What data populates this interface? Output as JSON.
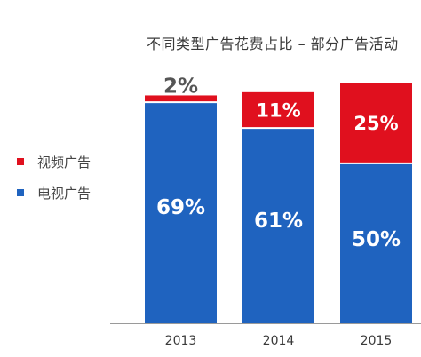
{
  "chart_data": {
    "type": "bar",
    "stacked": true,
    "title": "不同类型广告花费占比 – 部分广告活动",
    "categories": [
      "2013",
      "2014",
      "2015"
    ],
    "series": [
      {
        "name": "电视广告",
        "values": [
          69,
          61,
          50
        ],
        "labels": [
          "69%",
          "61%",
          "50%"
        ],
        "color": "#1f63bf"
      },
      {
        "name": "视频广告",
        "values": [
          2,
          11,
          25
        ],
        "labels": [
          "2%",
          "11%",
          "25%"
        ],
        "color": "#e0101e"
      }
    ],
    "ylim": [
      0,
      75
    ],
    "grid": false,
    "legend": "left"
  }
}
